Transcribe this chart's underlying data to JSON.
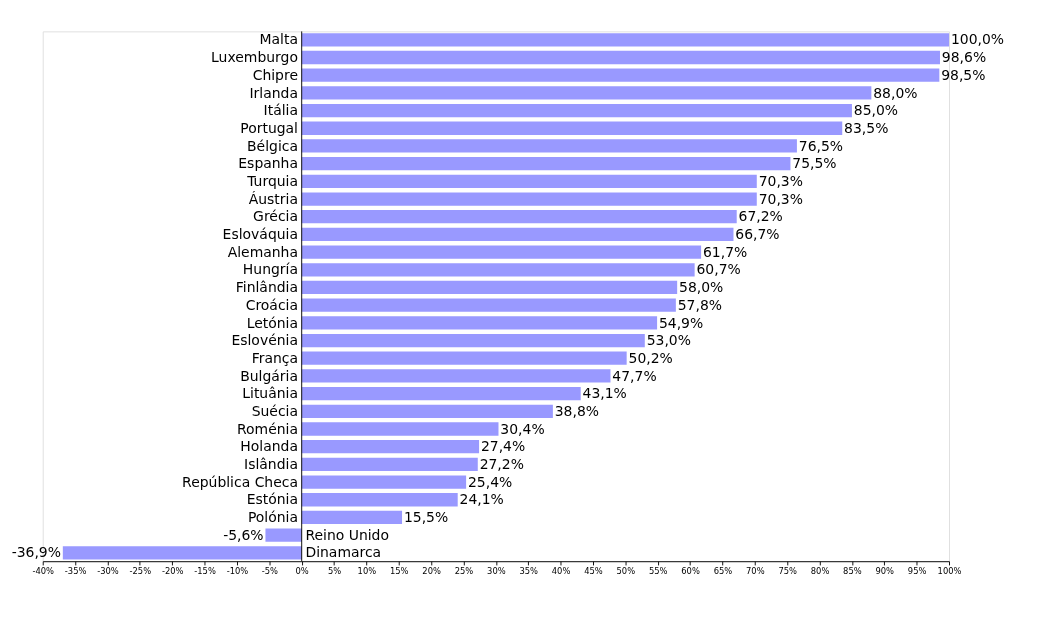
{
  "chart_data": {
    "type": "bar",
    "orientation": "horizontal",
    "categories": [
      "Malta",
      "Luxemburgo",
      "Chipre",
      "Irlanda",
      "Itália",
      "Portugal",
      "Bélgica",
      "Espanha",
      "Turquia",
      "Áustria",
      "Grécia",
      "Eslováquia",
      "Alemanha",
      "Hungría",
      "Finlândia",
      "Croácia",
      "Letónia",
      "Eslovénia",
      "França",
      "Bulgária",
      "Lituânia",
      "Suécia",
      "Roménia",
      "Holanda",
      "Islândia",
      "República Checa",
      "Estónia",
      "Polónia",
      "Reino Unido",
      "Dinamarca"
    ],
    "values": [
      100.0,
      98.6,
      98.5,
      88.0,
      85.0,
      83.5,
      76.5,
      75.5,
      70.3,
      70.3,
      67.2,
      66.7,
      61.7,
      60.7,
      58.0,
      57.8,
      54.9,
      53.0,
      50.2,
      47.7,
      43.1,
      38.8,
      30.4,
      27.4,
      27.2,
      25.4,
      24.1,
      15.5,
      -5.6,
      -36.9
    ],
    "value_labels": [
      "100,0%",
      "98,6%",
      "98,5%",
      "88,0%",
      "85,0%",
      "83,5%",
      "76,5%",
      "75,5%",
      "70,3%",
      "70,3%",
      "67,2%",
      "66,7%",
      "61,7%",
      "60,7%",
      "58,0%",
      "57,8%",
      "54,9%",
      "53,0%",
      "50,2%",
      "47,7%",
      "43,1%",
      "38,8%",
      "30,4%",
      "27,4%",
      "27,2%",
      "25,4%",
      "24,1%",
      "15,5%",
      "-5,6%",
      "-36,9%"
    ],
    "color": "#9999ff",
    "xlim": [
      -40,
      100
    ],
    "xticks": [
      {
        "value": -40,
        "label": "-40%"
      },
      {
        "value": -35,
        "label": "-35%"
      },
      {
        "value": -30,
        "label": "-30%"
      },
      {
        "value": -25,
        "label": "-25%"
      },
      {
        "value": -20,
        "label": "-20%"
      },
      {
        "value": -15,
        "label": "-15%"
      },
      {
        "value": -10,
        "label": "-10%"
      },
      {
        "value": -5,
        "label": "-5%"
      },
      {
        "value": 0,
        "label": "0%"
      },
      {
        "value": 5,
        "label": "5%"
      },
      {
        "value": 10,
        "label": "10%"
      },
      {
        "value": 15,
        "label": "15%"
      },
      {
        "value": 20,
        "label": "20%"
      },
      {
        "value": 25,
        "label": "25%"
      },
      {
        "value": 30,
        "label": "30%"
      },
      {
        "value": 35,
        "label": "35%"
      },
      {
        "value": 40,
        "label": "40%"
      },
      {
        "value": 45,
        "label": "45%"
      },
      {
        "value": 50,
        "label": "50%"
      },
      {
        "value": 55,
        "label": "55%"
      },
      {
        "value": 60,
        "label": "60%"
      },
      {
        "value": 65,
        "label": "65%"
      },
      {
        "value": 70,
        "label": "70%"
      },
      {
        "value": 75,
        "label": "75%"
      },
      {
        "value": 80,
        "label": "80%"
      },
      {
        "value": 85,
        "label": "85%"
      },
      {
        "value": 90,
        "label": "90%"
      },
      {
        "value": 95,
        "label": "95%"
      },
      {
        "value": 100,
        "label": "100%"
      }
    ],
    "grid": false
  }
}
